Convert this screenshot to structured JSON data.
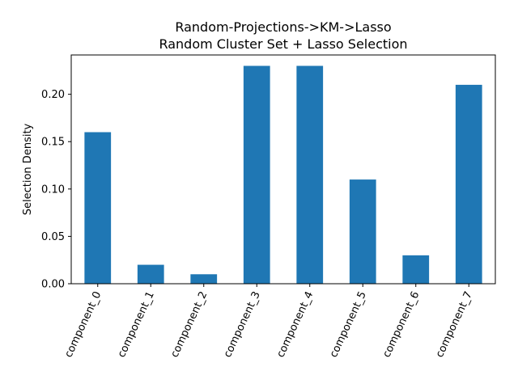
{
  "chart_data": {
    "type": "bar",
    "title_line1": "Random-Projections->KM->Lasso",
    "title_line2": "Random Cluster Set + Lasso Selection",
    "xlabel": "",
    "ylabel": "Selection Density",
    "categories": [
      "component_0",
      "component_1",
      "component_2",
      "component_3",
      "component_4",
      "component_5",
      "component_6",
      "component_7"
    ],
    "values": [
      0.16,
      0.02,
      0.01,
      0.23,
      0.23,
      0.11,
      0.03,
      0.21
    ],
    "ylim": [
      0,
      0.2415
    ],
    "yticks": [
      0.0,
      0.05,
      0.1,
      0.15,
      0.2
    ],
    "ytick_labels": [
      "0.00",
      "0.05",
      "0.10",
      "0.15",
      "0.20"
    ],
    "bar_color": "#1f77b4",
    "grid": false,
    "legend": "none"
  }
}
